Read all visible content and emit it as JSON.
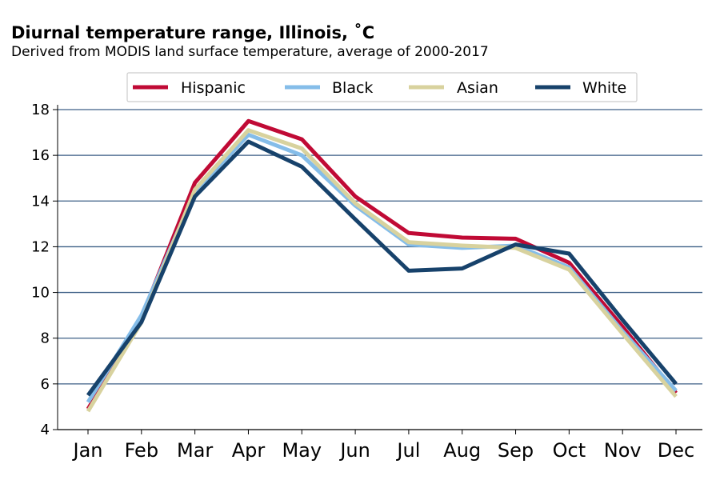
{
  "chart_data": {
    "type": "line",
    "title": "Diurnal temperature range, Illinois, ˚C",
    "subtitle": "Derived from MODIS land surface temperature, average of 2000-2017",
    "categories": [
      "Jan",
      "Feb",
      "Mar",
      "Apr",
      "May",
      "Jun",
      "Jul",
      "Aug",
      "Sep",
      "Oct",
      "Nov",
      "Dec"
    ],
    "ylim": [
      4,
      18
    ],
    "yticks": [
      4,
      6,
      8,
      10,
      12,
      14,
      16,
      18
    ],
    "grid": "horizontal",
    "legend_position": "top",
    "series": [
      {
        "name": "Hispanic",
        "color": "#c00a35",
        "values": [
          4.9,
          8.9,
          14.8,
          17.5,
          16.7,
          14.2,
          12.6,
          12.4,
          12.35,
          11.3,
          8.5,
          5.6
        ]
      },
      {
        "name": "Black",
        "color": "#85bde9",
        "values": [
          5.2,
          9.0,
          14.4,
          16.9,
          16.0,
          13.8,
          12.1,
          11.95,
          12.05,
          11.1,
          8.3,
          5.7
        ]
      },
      {
        "name": "Asian",
        "color": "#d8d29e",
        "values": [
          4.8,
          8.7,
          14.5,
          17.1,
          16.3,
          13.9,
          12.2,
          12.05,
          11.95,
          11.0,
          8.2,
          5.45
        ]
      },
      {
        "name": "White",
        "color": "#17426b",
        "values": [
          5.5,
          8.7,
          14.2,
          16.6,
          15.5,
          13.2,
          10.95,
          11.05,
          12.1,
          11.7,
          8.8,
          6.0
        ]
      }
    ]
  }
}
